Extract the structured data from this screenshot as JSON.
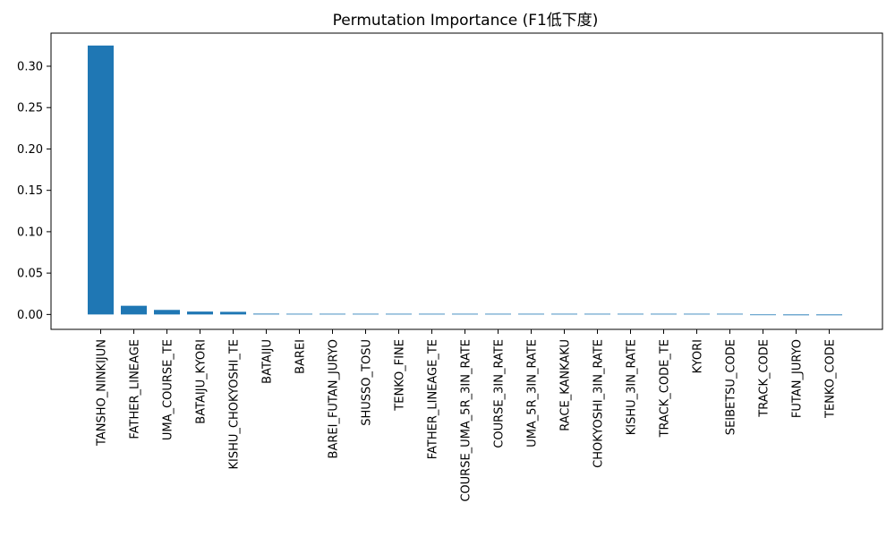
{
  "chart_data": {
    "type": "bar",
    "title": "Permutation Importance (F1低下度)",
    "xlabel": "",
    "ylabel": "",
    "ylim": [
      -0.018,
      0.34
    ],
    "yticks": [
      0.0,
      0.05,
      0.1,
      0.15,
      0.2,
      0.25,
      0.3
    ],
    "ytick_labels": [
      "0.00",
      "0.05",
      "0.10",
      "0.15",
      "0.20",
      "0.25",
      "0.30"
    ],
    "grid": false,
    "bar_color": "#1f77b4",
    "categories": [
      "TANSHO_NINKIJUN",
      "FATHER_LINEAGE",
      "UMA_COURSE_TE",
      "BATAIJU_KYORI",
      "KISHU_CHOKYOSHI_TE",
      "BATAIJU",
      "BAREI",
      "BAREI_FUTAN_JURYO",
      "SHUSSO_TOSU",
      "TENKO_FINE",
      "FATHER_LINEAGE_TE",
      "COURSE_UMA_5R_3IN_RATE",
      "COURSE_3IN_RATE",
      "UMA_5R_3IN_RATE",
      "RACE_KANKAKU",
      "CHOKYOSHI_3IN_RATE",
      "KISHU_3IN_RATE",
      "TRACK_CODE_TE",
      "KYORI",
      "SEIBETSU_CODE",
      "TRACK_CODE",
      "FUTAN_JURYO",
      "TENKO_CODE"
    ],
    "values": [
      0.325,
      0.0105,
      0.0055,
      0.0035,
      0.0032,
      0.001,
      0.0008,
      0.0,
      0.0,
      0.0,
      0.0,
      0.0,
      0.0,
      0.0,
      0.0,
      0.0,
      0.0,
      0.0,
      0.0,
      0.0,
      -0.0008,
      -0.001,
      -0.001
    ]
  }
}
